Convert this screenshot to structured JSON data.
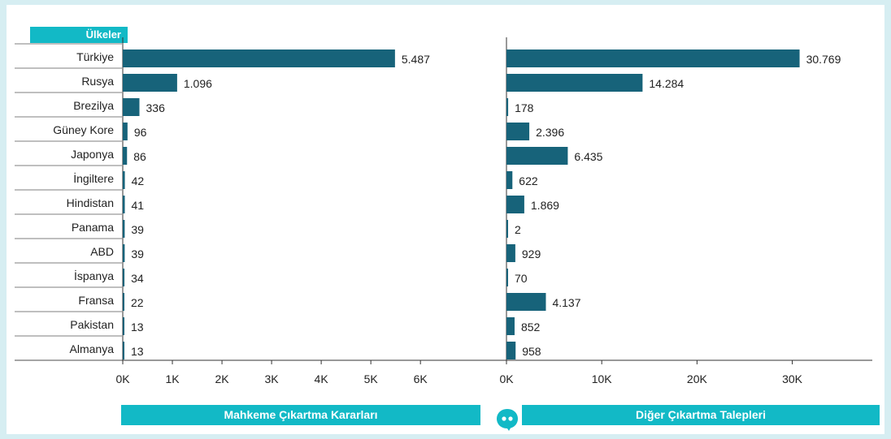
{
  "header": {
    "countries_label": "Ülkeler"
  },
  "footer": {
    "left_title": "Mahkeme Çıkartma Kararları",
    "right_title": "Diğer Çıkartma Talepleri"
  },
  "colors": {
    "bar": "#17637a",
    "accent": "#12b9c6",
    "axis": "#333333"
  },
  "icons": {
    "center_icon": "speech-bubble-icon"
  },
  "chart_data": [
    {
      "type": "bar",
      "orientation": "horizontal",
      "title": "Mahkeme Çıkartma Kararları",
      "categories": [
        "Türkiye",
        "Rusya",
        "Brezilya",
        "Güney Kore",
        "Japonya",
        "İngiltere",
        "Hindistan",
        "Panama",
        "ABD",
        "İspanya",
        "Fransa",
        "Pakistan",
        "Almanya"
      ],
      "values": [
        5487,
        1096,
        336,
        96,
        86,
        42,
        41,
        39,
        39,
        34,
        22,
        13,
        13
      ],
      "value_labels": [
        "5.487",
        "1.096",
        "336",
        "96",
        "86",
        "42",
        "41",
        "39",
        "39",
        "34",
        "22",
        "13",
        "13"
      ],
      "xlim": [
        0,
        6800
      ],
      "ticks": [
        0,
        1000,
        2000,
        3000,
        4000,
        5000,
        6000
      ],
      "tick_labels": [
        "0K",
        "1K",
        "2K",
        "3K",
        "4K",
        "5K",
        "6K"
      ]
    },
    {
      "type": "bar",
      "orientation": "horizontal",
      "title": "Diğer Çıkartma Talepleri",
      "categories": [
        "Türkiye",
        "Rusya",
        "Brezilya",
        "Güney Kore",
        "Japonya",
        "İngiltere",
        "Hindistan",
        "Panama",
        "ABD",
        "İspanya",
        "Fransa",
        "Pakistan",
        "Almanya"
      ],
      "values": [
        30769,
        14284,
        178,
        2396,
        6435,
        622,
        1869,
        2,
        929,
        70,
        4137,
        852,
        958
      ],
      "value_labels": [
        "30.769",
        "14.284",
        "178",
        "2.396",
        "6.435",
        "622",
        "1.869",
        "2",
        "929",
        "70",
        "4.137",
        "852",
        "958"
      ],
      "xlim": [
        0,
        38400
      ],
      "ticks": [
        0,
        10000,
        20000,
        30000
      ],
      "tick_labels": [
        "0K",
        "10K",
        "20K",
        "30K"
      ]
    }
  ]
}
